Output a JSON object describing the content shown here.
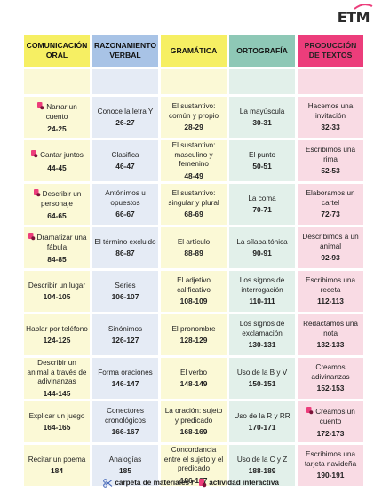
{
  "logo": "ETM",
  "headers": [
    "COMUNICACIÓN ORAL",
    "RAZONAMIENTO VERBAL",
    "GRAMÁTICA",
    "ORTOGRAFÍA",
    "PRODUCCIÓN DE TEXTOS"
  ],
  "rows": [
    [
      {
        "text": "Narrar un cuento",
        "pages": "24-25",
        "icon": "interactive"
      },
      {
        "text": "Conoce la letra Y",
        "pages": "26-27"
      },
      {
        "text": "El sustantivo: común y propio",
        "pages": "28-29"
      },
      {
        "text": "La mayúscula",
        "pages": "30-31"
      },
      {
        "text": "Hacemos una invitación",
        "pages": "32-33"
      }
    ],
    [
      {
        "text": "Cantar juntos",
        "pages": "44-45",
        "icon": "interactive"
      },
      {
        "text": "Clasifica",
        "pages": "46-47"
      },
      {
        "text": "El sustantivo: masculino y femenino",
        "pages": "48-49"
      },
      {
        "text": "El punto",
        "pages": "50-51"
      },
      {
        "text": "Escribimos una rima",
        "pages": "52-53"
      }
    ],
    [
      {
        "text": "Describir un personaje",
        "pages": "64-65",
        "icon": "interactive"
      },
      {
        "text": "Antónimos u opuestos",
        "pages": "66-67"
      },
      {
        "text": "El sustantivo: singular y plural",
        "pages": "68-69"
      },
      {
        "text": "La coma",
        "pages": "70-71"
      },
      {
        "text": "Elaboramos un cartel",
        "pages": "72-73"
      }
    ],
    [
      {
        "text": "Dramatizar una fábula",
        "pages": "84-85",
        "icon": "interactive"
      },
      {
        "text": "El término excluido",
        "pages": "86-87"
      },
      {
        "text": "El artículo",
        "pages": "88-89"
      },
      {
        "text": "La sílaba tónica",
        "pages": "90-91"
      },
      {
        "text": "Describimos a un animal",
        "pages": "92-93"
      }
    ],
    [
      {
        "text": "Describir un lugar",
        "pages": "104-105"
      },
      {
        "text": "Series",
        "pages": "106-107"
      },
      {
        "text": "El adjetivo calificativo",
        "pages": "108-109"
      },
      {
        "text": "Los signos de interrogación",
        "pages": "110-111"
      },
      {
        "text": "Escribimos una receta",
        "pages": "112-113"
      }
    ],
    [
      {
        "text": "Hablar por teléfono",
        "pages": "124-125"
      },
      {
        "text": "Sinónimos",
        "pages": "126-127"
      },
      {
        "text": "El pronombre",
        "pages": "128-129"
      },
      {
        "text": "Los signos de exclamación",
        "pages": "130-131"
      },
      {
        "text": "Redactamos una nota",
        "pages": "132-133"
      }
    ],
    [
      {
        "text": "Describir un animal a través de adivinanzas",
        "pages": "144-145"
      },
      {
        "text": "Forma oraciones",
        "pages": "146-147"
      },
      {
        "text": "El verbo",
        "pages": "148-149"
      },
      {
        "text": "Uso de la B y V",
        "pages": "150-151"
      },
      {
        "text": "Creamos adivinanzas",
        "pages": "152-153"
      }
    ],
    [
      {
        "text": "Explicar un juego",
        "pages": "164-165"
      },
      {
        "text": "Conectores cronológicos",
        "pages": "166-167"
      },
      {
        "text": "La oración: sujeto y predicado",
        "pages": "168-169"
      },
      {
        "text": "Uso de la R y RR",
        "pages": "170-171"
      },
      {
        "text": "Creamos un cuento",
        "pages": "172-173",
        "icon": "interactive"
      }
    ],
    [
      {
        "text": "Recitar un poema",
        "pages": "184"
      },
      {
        "text": "Analogías",
        "pages": "185"
      },
      {
        "text": "Concordancia entre el sujeto y el predicado",
        "pages": "186-187"
      },
      {
        "text": "Uso de la C y Z",
        "pages": "188-189"
      },
      {
        "text": "Escribimos una tarjeta navideña",
        "pages": "190-191"
      }
    ]
  ],
  "legend": {
    "materials": "carpeta de materiales /",
    "interactive": "actividad interactiva"
  },
  "colors": {
    "yellow": "#f6ef63",
    "blue": "#a8c3e6",
    "green": "#8ec8b6",
    "pink": "#ec3d7b"
  }
}
